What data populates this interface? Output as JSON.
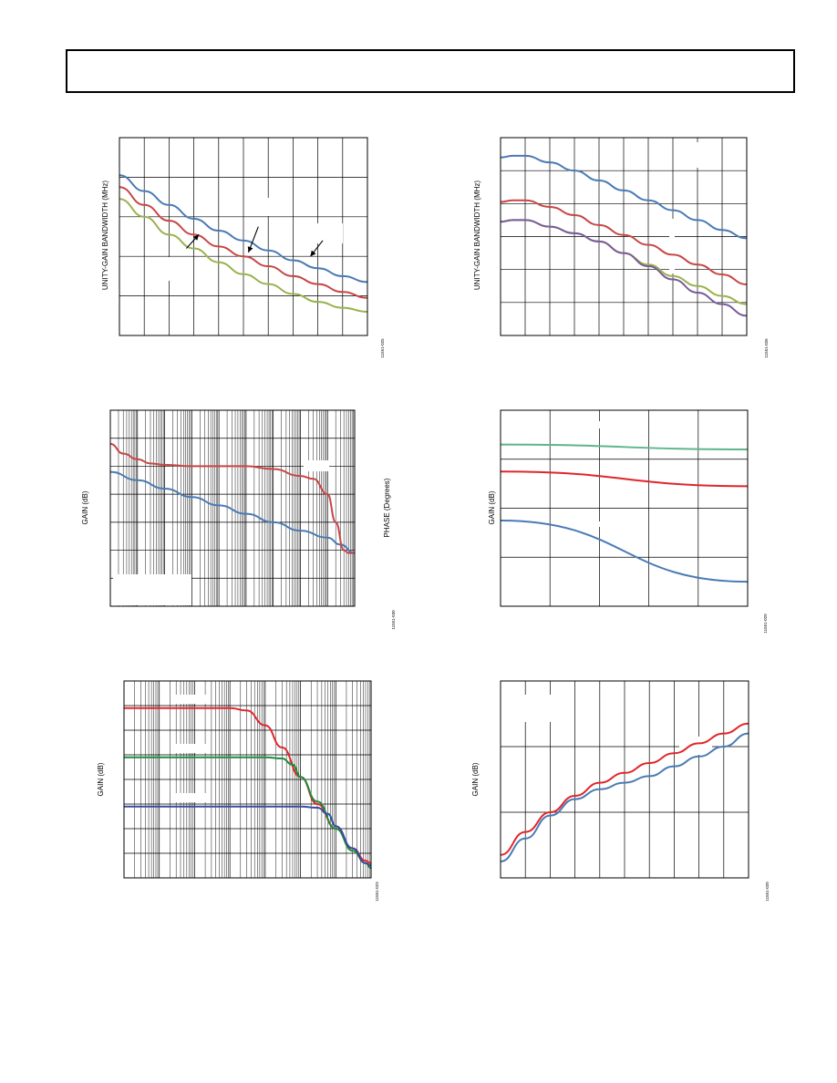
{
  "colors": {
    "blue": "#4a7ab5",
    "red": "#c84646",
    "green": "#9ab24e",
    "teal": "#5fb58c",
    "purple": "#7a5a9c",
    "bright_red": "#e0262b",
    "dark_green": "#1e8c3c",
    "navy": "#3a4aa0"
  },
  "chart_data": [
    {
      "type": "line",
      "ylabel": "UNITY-GAIN BANDWIDTH (MHz)",
      "figure_id": "11551-025",
      "xlim": [
        0,
        10
      ],
      "ylim": [
        0,
        5
      ],
      "x_gridlines": 10,
      "y_gridlines": 5,
      "series": [
        {
          "color": "blue",
          "x": [
            0,
            1,
            2,
            3,
            4,
            5,
            6,
            7,
            8,
            9,
            10
          ],
          "y": [
            4.05,
            3.65,
            3.3,
            2.95,
            2.65,
            2.4,
            2.15,
            1.9,
            1.7,
            1.5,
            1.35
          ]
        },
        {
          "color": "red",
          "x": [
            0,
            1,
            2,
            3,
            4,
            5,
            6,
            7,
            8,
            9,
            10
          ],
          "y": [
            3.75,
            3.3,
            2.9,
            2.55,
            2.25,
            2.0,
            1.75,
            1.5,
            1.3,
            1.1,
            0.95
          ]
        },
        {
          "color": "green",
          "x": [
            0,
            1,
            2,
            3,
            4,
            5,
            6,
            7,
            8,
            9,
            10
          ],
          "y": [
            3.45,
            3.0,
            2.55,
            2.2,
            1.85,
            1.55,
            1.3,
            1.05,
            0.85,
            0.7,
            0.6
          ]
        }
      ],
      "annotations": [
        {
          "type": "arrow",
          "from": [
            2.7,
            2.2
          ],
          "to": [
            3.2,
            2.55
          ]
        },
        {
          "type": "arrow",
          "from": [
            5.6,
            2.75
          ],
          "to": [
            5.2,
            2.1
          ]
        },
        {
          "type": "arrow",
          "from": [
            8.2,
            2.4
          ],
          "to": [
            7.7,
            2.0
          ]
        }
      ]
    },
    {
      "type": "line",
      "ylabel": "UNITY-GAIN BANDWIDTH (MHz)",
      "figure_id": "11551-026",
      "xlim": [
        0,
        10
      ],
      "ylim": [
        0,
        6
      ],
      "x_gridlines": 10,
      "y_gridlines": 6,
      "series": [
        {
          "color": "blue",
          "x": [
            0,
            0.5,
            1,
            2,
            3,
            4,
            5,
            6,
            7,
            8,
            9,
            10
          ],
          "y": [
            5.4,
            5.45,
            5.45,
            5.25,
            5.0,
            4.7,
            4.4,
            4.1,
            3.8,
            3.5,
            3.2,
            2.95
          ]
        },
        {
          "color": "red",
          "x": [
            0,
            0.5,
            1,
            2,
            3,
            4,
            5,
            6,
            7,
            8,
            9,
            10
          ],
          "y": [
            4.05,
            4.1,
            4.1,
            3.9,
            3.65,
            3.35,
            3.05,
            2.75,
            2.45,
            2.15,
            1.85,
            1.55
          ]
        },
        {
          "color": "green",
          "x": [
            0,
            0.5,
            1,
            2,
            3,
            4,
            5,
            6,
            7,
            8,
            9,
            10
          ],
          "y": [
            3.45,
            3.5,
            3.5,
            3.3,
            3.1,
            2.85,
            2.5,
            2.15,
            1.8,
            1.5,
            1.2,
            0.95
          ]
        },
        {
          "color": "purple",
          "x": [
            0,
            0.5,
            1,
            2,
            3,
            4,
            5,
            6,
            7,
            8,
            9,
            10
          ],
          "y": [
            3.45,
            3.5,
            3.5,
            3.3,
            3.1,
            2.85,
            2.5,
            2.1,
            1.7,
            1.3,
            0.95,
            0.6
          ]
        }
      ]
    },
    {
      "type": "line",
      "ylabel": "GAIN (dB)",
      "ylabel_right": "PHASE (Degrees)",
      "figure_id": "11551-030",
      "xscale": "log",
      "xlim": [
        1,
        1000000000
      ],
      "ylim": [
        0,
        7
      ],
      "y_gridlines": 7,
      "series": [
        {
          "color": "blue",
          "x": [
            1,
            10,
            100,
            1000,
            10000,
            100000,
            1000000,
            10000000,
            100000000,
            300000000,
            1000000000
          ],
          "y": [
            4.8,
            4.5,
            4.2,
            3.9,
            3.6,
            3.3,
            3.0,
            2.7,
            2.45,
            2.2,
            1.9
          ]
        },
        {
          "color": "red",
          "x": [
            1,
            3,
            10,
            30,
            100,
            1000,
            10000,
            100000,
            1000000,
            10000000,
            30000000,
            100000000,
            200000000,
            400000000,
            600000000,
            1000000000
          ],
          "y": [
            5.8,
            5.45,
            5.25,
            5.1,
            5.05,
            5.0,
            5.0,
            5.0,
            4.9,
            4.65,
            4.55,
            4.0,
            3.0,
            2.0,
            1.9,
            1.9
          ]
        }
      ],
      "legend_box": "bottom-left"
    },
    {
      "type": "line",
      "ylabel": "GAIN (dB)",
      "figure_id": "11551-029",
      "xlim": [
        0,
        5
      ],
      "ylim": [
        0,
        4
      ],
      "x_gridlines": 5,
      "y_gridlines": 4,
      "series": [
        {
          "color": "teal",
          "x": [
            0,
            5
          ],
          "y": [
            3.3,
            3.2
          ]
        },
        {
          "color": "bright_red",
          "x": [
            0,
            5
          ],
          "y": [
            2.75,
            2.45
          ]
        },
        {
          "color": "blue",
          "x": [
            0,
            5
          ],
          "y": [
            1.75,
            0.5
          ]
        }
      ]
    },
    {
      "type": "line",
      "ylabel": "GAIN (dB)",
      "figure_id": "11551-023",
      "xscale": "log",
      "xlim": [
        1,
        10000000
      ],
      "ylim": [
        0,
        8
      ],
      "y_gridlines": 8,
      "series": [
        {
          "color": "bright_red",
          "x": [
            1,
            10,
            100,
            1000,
            3000,
            10000,
            30000,
            100000,
            300000,
            1000000,
            3000000,
            7000000,
            10000000
          ],
          "y": [
            6.9,
            6.9,
            6.9,
            6.9,
            6.8,
            6.2,
            5.3,
            4.1,
            3.0,
            2.0,
            1.2,
            0.7,
            0.6
          ]
        },
        {
          "color": "dark_green",
          "x": [
            1,
            10,
            100,
            1000,
            10000,
            30000,
            60000,
            100000,
            300000,
            1000000,
            3000000,
            7000000,
            10000000
          ],
          "y": [
            4.9,
            4.9,
            4.9,
            4.9,
            4.9,
            4.85,
            4.6,
            4.1,
            3.1,
            2.0,
            1.1,
            0.6,
            0.4
          ]
        },
        {
          "color": "navy",
          "x": [
            1,
            10,
            100,
            1000,
            10000,
            100000,
            300000,
            600000,
            1000000,
            3000000,
            7000000,
            10000000
          ],
          "y": [
            2.9,
            2.9,
            2.9,
            2.9,
            2.9,
            2.9,
            2.85,
            2.6,
            2.1,
            1.2,
            0.6,
            0.5
          ]
        }
      ]
    },
    {
      "type": "line",
      "ylabel": "GAIN (dB)",
      "figure_id": "11551-020",
      "xlim": [
        0,
        10
      ],
      "ylim": [
        0,
        3
      ],
      "x_gridlines": 10,
      "y_gridlines": 3,
      "series": [
        {
          "color": "bright_red",
          "x": [
            0,
            1,
            2,
            3,
            4,
            5,
            6,
            7,
            8,
            9,
            10
          ],
          "y": [
            0.35,
            0.7,
            1.0,
            1.25,
            1.45,
            1.6,
            1.75,
            1.9,
            2.05,
            2.2,
            2.35
          ]
        },
        {
          "color": "blue",
          "x": [
            0,
            1,
            2,
            3,
            4,
            5,
            6,
            7,
            8,
            9,
            10
          ],
          "y": [
            0.25,
            0.6,
            0.95,
            1.2,
            1.35,
            1.45,
            1.55,
            1.7,
            1.85,
            2.0,
            2.2
          ]
        }
      ]
    }
  ]
}
